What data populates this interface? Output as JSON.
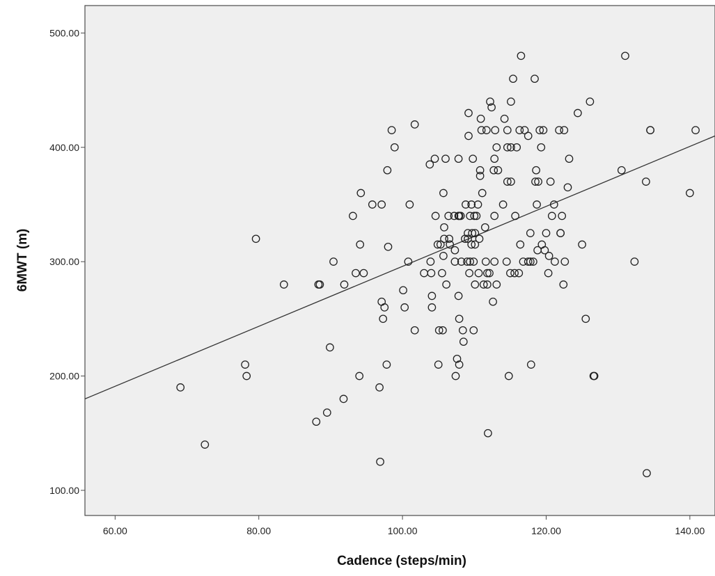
{
  "chart_data": {
    "type": "scatter",
    "title": "",
    "xlabel": "Cadence (steps/min)",
    "ylabel": "6MWT (m)",
    "xlim": [
      55.8,
      143.5
    ],
    "ylim": [
      78,
      524
    ],
    "xticks": [
      {
        "value": 60,
        "label": "60.00"
      },
      {
        "value": 80,
        "label": "80.00"
      },
      {
        "value": 100,
        "label": "100.00"
      },
      {
        "value": 120,
        "label": "120.00"
      },
      {
        "value": 140,
        "label": "140.00"
      }
    ],
    "yticks": [
      {
        "value": 100,
        "label": "100.00"
      },
      {
        "value": 200,
        "label": "200.00"
      },
      {
        "value": 300,
        "label": "300.00"
      },
      {
        "value": 400,
        "label": "400.00"
      },
      {
        "value": 500,
        "label": "500.00"
      }
    ],
    "grid": false,
    "legend": "none",
    "fit_line": {
      "x": [
        55.8,
        143.5
      ],
      "y": [
        180,
        410
      ]
    },
    "points": [
      [
        69.1,
        190
      ],
      [
        72.5,
        140
      ],
      [
        78.1,
        210
      ],
      [
        78.3,
        200
      ],
      [
        79.6,
        320
      ],
      [
        83.5,
        280
      ],
      [
        88.0,
        160
      ],
      [
        88.3,
        280
      ],
      [
        88.5,
        280
      ],
      [
        89.5,
        168
      ],
      [
        89.9,
        225
      ],
      [
        90.4,
        300
      ],
      [
        91.8,
        180
      ],
      [
        91.9,
        280
      ],
      [
        93.1,
        340
      ],
      [
        93.5,
        290
      ],
      [
        94.0,
        200
      ],
      [
        94.1,
        315
      ],
      [
        94.2,
        360
      ],
      [
        94.6,
        290
      ],
      [
        95.8,
        350
      ],
      [
        96.8,
        190
      ],
      [
        96.9,
        125
      ],
      [
        97.1,
        350
      ],
      [
        97.1,
        265
      ],
      [
        97.3,
        250
      ],
      [
        97.5,
        260
      ],
      [
        97.8,
        210
      ],
      [
        97.9,
        380
      ],
      [
        98.0,
        313
      ],
      [
        98.5,
        415
      ],
      [
        98.9,
        400
      ],
      [
        100.1,
        275
      ],
      [
        100.3,
        260
      ],
      [
        100.8,
        300
      ],
      [
        101.0,
        350
      ],
      [
        101.7,
        240
      ],
      [
        101.7,
        420
      ],
      [
        103.0,
        290
      ],
      [
        103.8,
        385
      ],
      [
        103.9,
        300
      ],
      [
        104.0,
        290
      ],
      [
        104.1,
        270
      ],
      [
        104.1,
        260
      ],
      [
        104.5,
        390
      ],
      [
        104.6,
        340
      ],
      [
        104.9,
        315
      ],
      [
        105.0,
        210
      ],
      [
        105.1,
        240
      ],
      [
        105.3,
        315
      ],
      [
        105.5,
        290
      ],
      [
        105.6,
        240
      ],
      [
        105.7,
        305
      ],
      [
        105.7,
        360
      ],
      [
        105.8,
        330
      ],
      [
        105.8,
        320
      ],
      [
        106.0,
        390
      ],
      [
        106.1,
        280
      ],
      [
        106.4,
        340
      ],
      [
        106.5,
        320
      ],
      [
        106.6,
        315
      ],
      [
        107.2,
        340
      ],
      [
        107.3,
        300
      ],
      [
        107.3,
        310
      ],
      [
        107.4,
        200
      ],
      [
        107.6,
        215
      ],
      [
        107.8,
        270
      ],
      [
        107.8,
        340
      ],
      [
        107.8,
        390
      ],
      [
        107.9,
        340
      ],
      [
        107.9,
        250
      ],
      [
        107.9,
        210
      ],
      [
        108.1,
        340
      ],
      [
        108.2,
        300
      ],
      [
        108.4,
        240
      ],
      [
        108.5,
        230
      ],
      [
        108.7,
        320
      ],
      [
        108.8,
        350
      ],
      [
        109.0,
        300
      ],
      [
        109.1,
        325
      ],
      [
        109.1,
        320
      ],
      [
        109.2,
        410
      ],
      [
        109.2,
        430
      ],
      [
        109.3,
        290
      ],
      [
        109.4,
        340
      ],
      [
        109.4,
        300
      ],
      [
        109.6,
        315
      ],
      [
        109.6,
        350
      ],
      [
        109.7,
        325
      ],
      [
        109.8,
        390
      ],
      [
        109.9,
        300
      ],
      [
        109.9,
        240
      ],
      [
        110.0,
        340
      ],
      [
        110.1,
        280
      ],
      [
        110.1,
        325
      ],
      [
        110.1,
        315
      ],
      [
        110.3,
        340
      ],
      [
        110.5,
        350
      ],
      [
        110.6,
        290
      ],
      [
        110.7,
        320
      ],
      [
        110.8,
        375
      ],
      [
        110.8,
        380
      ],
      [
        110.9,
        425
      ],
      [
        111.0,
        415
      ],
      [
        111.1,
        360
      ],
      [
        111.3,
        280
      ],
      [
        111.5,
        330
      ],
      [
        111.6,
        300
      ],
      [
        111.7,
        415
      ],
      [
        111.8,
        290
      ],
      [
        111.8,
        280
      ],
      [
        111.9,
        150
      ],
      [
        112.1,
        290
      ],
      [
        112.2,
        440
      ],
      [
        112.4,
        435
      ],
      [
        112.6,
        265
      ],
      [
        112.7,
        380
      ],
      [
        112.8,
        390
      ],
      [
        112.8,
        340
      ],
      [
        112.8,
        300
      ],
      [
        112.9,
        415
      ],
      [
        113.1,
        400
      ],
      [
        113.1,
        280
      ],
      [
        113.3,
        380
      ],
      [
        114.0,
        350
      ],
      [
        114.2,
        425
      ],
      [
        114.5,
        300
      ],
      [
        114.6,
        415
      ],
      [
        114.6,
        370
      ],
      [
        114.6,
        400
      ],
      [
        114.8,
        200
      ],
      [
        115.0,
        290
      ],
      [
        115.1,
        370
      ],
      [
        115.1,
        440
      ],
      [
        115.1,
        400
      ],
      [
        115.4,
        460
      ],
      [
        115.6,
        290
      ],
      [
        115.7,
        340
      ],
      [
        115.9,
        400
      ],
      [
        116.2,
        290
      ],
      [
        116.3,
        415
      ],
      [
        116.4,
        315
      ],
      [
        116.5,
        480
      ],
      [
        116.8,
        300
      ],
      [
        117.0,
        415
      ],
      [
        117.5,
        410
      ],
      [
        117.5,
        300
      ],
      [
        117.8,
        325
      ],
      [
        117.8,
        300
      ],
      [
        117.9,
        210
      ],
      [
        118.2,
        300
      ],
      [
        118.4,
        460
      ],
      [
        118.5,
        370
      ],
      [
        118.6,
        380
      ],
      [
        118.7,
        350
      ],
      [
        118.8,
        310
      ],
      [
        118.9,
        370
      ],
      [
        119.1,
        415
      ],
      [
        119.3,
        400
      ],
      [
        119.4,
        315
      ],
      [
        119.6,
        415
      ],
      [
        119.8,
        310
      ],
      [
        120.0,
        325
      ],
      [
        120.3,
        290
      ],
      [
        120.4,
        305
      ],
      [
        120.6,
        370
      ],
      [
        120.8,
        340
      ],
      [
        121.1,
        350
      ],
      [
        121.2,
        300
      ],
      [
        121.8,
        415
      ],
      [
        122.0,
        325
      ],
      [
        122.0,
        325
      ],
      [
        122.2,
        340
      ],
      [
        122.4,
        280
      ],
      [
        122.5,
        415
      ],
      [
        122.6,
        300
      ],
      [
        123.0,
        365
      ],
      [
        123.2,
        390
      ],
      [
        124.4,
        430
      ],
      [
        125.0,
        315
      ],
      [
        125.5,
        250
      ],
      [
        126.1,
        440
      ],
      [
        126.6,
        200
      ],
      [
        126.7,
        200
      ],
      [
        130.5,
        380
      ],
      [
        131.0,
        480
      ],
      [
        132.3,
        300
      ],
      [
        133.9,
        370
      ],
      [
        134.0,
        115
      ],
      [
        134.5,
        415
      ],
      [
        134.5,
        415
      ],
      [
        140.0,
        360
      ],
      [
        140.8,
        415
      ]
    ]
  }
}
